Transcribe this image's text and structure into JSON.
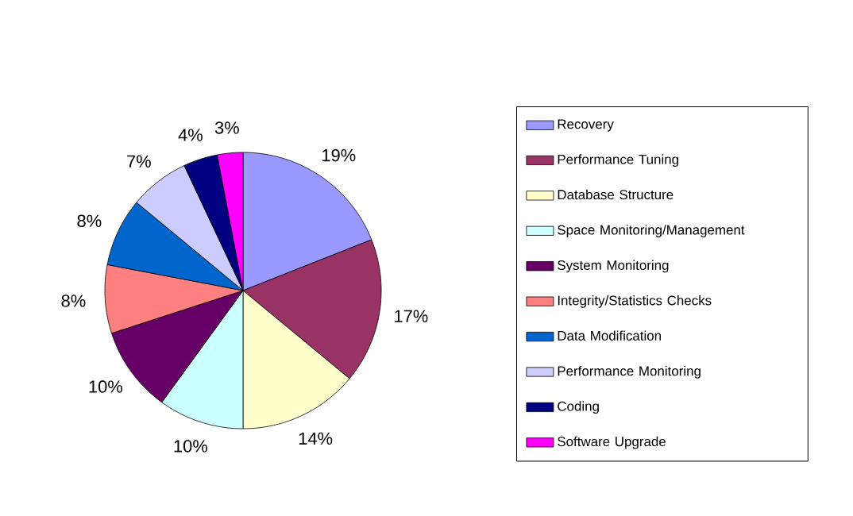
{
  "chart_data": {
    "type": "pie",
    "legend": "right",
    "categories": [
      "Recovery",
      "Performance Tuning",
      "Database Structure",
      "Space Monitoring/Management",
      "System Monitoring",
      "Integrity/Statistics Checks",
      "Data Modification",
      "Performance Monitoring",
      "Coding",
      "Software Upgrade"
    ],
    "values": [
      19,
      17,
      14,
      10,
      10,
      8,
      8,
      7,
      4,
      3
    ],
    "value_labels": [
      "19%",
      "17%",
      "14%",
      "10%",
      "10%",
      "8%",
      "8%",
      "7%",
      "4%",
      "3%"
    ],
    "colors": [
      "#9999ff",
      "#993366",
      "#ffffcc",
      "#ccffff",
      "#660066",
      "#ff8080",
      "#0066cc",
      "#ccccff",
      "#000080",
      "#ff00ff"
    ]
  }
}
